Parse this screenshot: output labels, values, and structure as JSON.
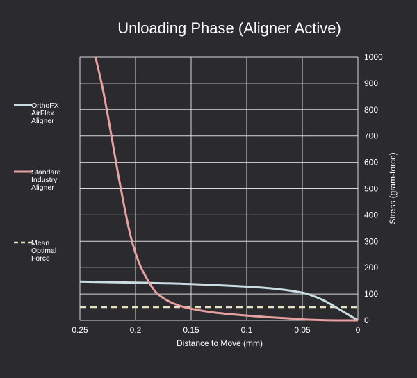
{
  "colors": {
    "background": "#2b2a2e",
    "grid": "#d9d9d9",
    "text": "#ffffff",
    "orthofx": "#c9dde3",
    "standard": "#e8a0a0",
    "optimal": "#e8e0c2"
  },
  "chart_data": {
    "type": "line",
    "title": "Unloading Phase (Aligner Active)",
    "xlabel": "Distance to Move (mm)",
    "ylabel": "Stress (gram-force)",
    "xlim": [
      0.25,
      0
    ],
    "ylim": [
      0,
      1000
    ],
    "x_ticks": [
      "0.25",
      "0.2",
      "0.15",
      "0.1",
      "0.05",
      "0"
    ],
    "y_ticks": [
      "0",
      "100",
      "200",
      "300",
      "400",
      "500",
      "600",
      "700",
      "800",
      "900",
      "1000"
    ],
    "grid": true,
    "legend_position": "left",
    "series": [
      {
        "name": "OrthoFX AirFlex Aligner",
        "name_lines": [
          "OrthoFX",
          "AirFlex",
          "Aligner"
        ],
        "style": "solid",
        "x": [
          0.25,
          0.2,
          0.15,
          0.1,
          0.075,
          0.05,
          0.04,
          0.03,
          0.02,
          0.01,
          0
        ],
        "y": [
          147,
          143,
          138,
          128,
          120,
          105,
          92,
          74,
          50,
          25,
          0
        ]
      },
      {
        "name": "Standard Industry Aligner",
        "name_lines": [
          "Standard",
          "Industry",
          "Aligner"
        ],
        "style": "solid",
        "x": [
          0.236,
          0.23,
          0.225,
          0.22,
          0.215,
          0.21,
          0.205,
          0.2,
          0.195,
          0.19,
          0.185,
          0.18,
          0.17,
          0.16,
          0.15,
          0.13,
          0.1,
          0.08,
          0.06,
          0.05,
          0.04,
          0.02,
          0
        ],
        "y": [
          1000,
          890,
          780,
          660,
          540,
          430,
          330,
          255,
          200,
          160,
          125,
          100,
          72,
          55,
          44,
          30,
          18,
          12,
          7,
          4,
          2,
          0,
          0
        ]
      },
      {
        "name": "Mean Optimal Force",
        "name_lines": [
          "Mean",
          "Optimal",
          "Force"
        ],
        "style": "dashed",
        "x": [
          0.25,
          0
        ],
        "y": [
          50,
          50
        ]
      }
    ]
  }
}
